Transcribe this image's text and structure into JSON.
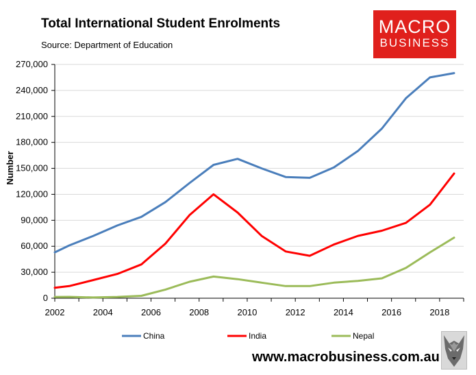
{
  "header": {
    "title": "Total International Student Enrolments",
    "source": "Source: Department of Education"
  },
  "logo": {
    "line1": "MACRO",
    "line2": "BUSINESS",
    "color": "#e0201c"
  },
  "footer": {
    "url": "www.macrobusiness.com.au",
    "mascot_icon": "wolf-icon"
  },
  "chart_data": {
    "type": "line",
    "title": "Total International Student Enrolments",
    "xlabel": "",
    "ylabel": "Number",
    "xlim": [
      2002,
      2019
    ],
    "ylim": [
      0,
      270000
    ],
    "xticks": [
      2002,
      2004,
      2006,
      2008,
      2010,
      2012,
      2014,
      2016,
      2018
    ],
    "xtick_labels": [
      "2002",
      "2004",
      "2006",
      "2008",
      "2010",
      "2012",
      "2014",
      "2016",
      "2018"
    ],
    "yticks": [
      0,
      30000,
      60000,
      90000,
      120000,
      150000,
      180000,
      210000,
      240000,
      270000
    ],
    "ytick_labels": [
      "0",
      "30,000",
      "60,000",
      "90,000",
      "120,000",
      "150,000",
      "180,000",
      "210,000",
      "240,000",
      "270,000"
    ],
    "legend_position": "bottom",
    "series": [
      {
        "name": "China",
        "color": "#4a7ebb",
        "x": [
          2002,
          2002.6,
          2003.6,
          2004.6,
          2005.6,
          2006.6,
          2007.6,
          2008.6,
          2009.6,
          2010.6,
          2011.6,
          2012.6,
          2013.6,
          2014.6,
          2015.6,
          2016.6,
          2017.6,
          2018.6
        ],
        "values": [
          53000,
          61000,
          72000,
          84000,
          94000,
          111000,
          133000,
          154000,
          161000,
          150000,
          140000,
          139000,
          151000,
          170000,
          196000,
          231000,
          255000,
          260000
        ]
      },
      {
        "name": "India",
        "color": "#ff0000",
        "x": [
          2002,
          2002.6,
          2003.6,
          2004.6,
          2005.6,
          2006.6,
          2007.6,
          2008.6,
          2009.6,
          2010.6,
          2011.6,
          2012.6,
          2013.6,
          2014.6,
          2015.6,
          2016.6,
          2017.6,
          2018.6
        ],
        "values": [
          12000,
          14000,
          21000,
          28000,
          39000,
          63000,
          96000,
          120000,
          99000,
          72000,
          54000,
          49000,
          62000,
          72000,
          78000,
          87000,
          108000,
          144000
        ]
      },
      {
        "name": "Nepal",
        "color": "#9bbb59",
        "x": [
          2002,
          2002.6,
          2003.6,
          2004.6,
          2005.6,
          2006.6,
          2007.6,
          2008.6,
          2009.6,
          2010.6,
          2011.6,
          2012.6,
          2013.6,
          2014.6,
          2015.6,
          2016.6,
          2017.6,
          2018.6
        ],
        "values": [
          1500,
          1600,
          900,
          1500,
          2800,
          10000,
          19000,
          25000,
          22000,
          18000,
          14000,
          14000,
          18000,
          20000,
          23000,
          35000,
          53000,
          70000
        ]
      }
    ]
  }
}
